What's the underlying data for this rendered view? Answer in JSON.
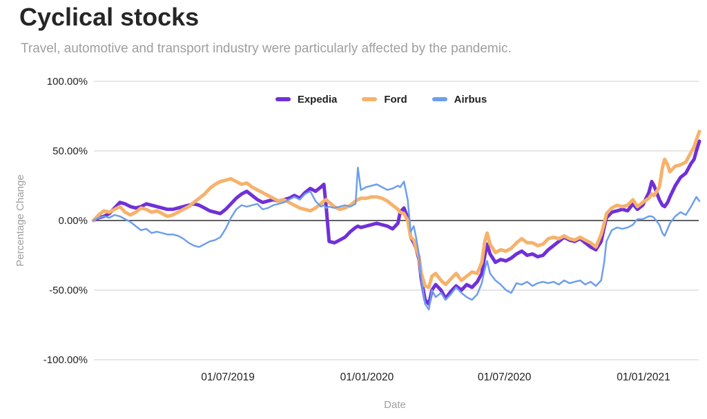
{
  "header": {
    "title": "Cyclical stocks",
    "subtitle": "Travel, automotive and transport industry were particularly affected by the pandemic."
  },
  "chart_data": {
    "type": "line",
    "title": "Cyclical stocks",
    "xlabel": "Date",
    "ylabel": "Percentage Change",
    "ylim": [
      -100,
      100
    ],
    "grid": "horizontal",
    "legend_position": "top-center",
    "grid_color": "#cccccc",
    "zero_line_color": "#4a4a4a",
    "tick_label_color": "#212121",
    "axis_title_color": "#9e9e9e",
    "yticks": [
      {
        "v": 100,
        "label": "100.00%"
      },
      {
        "v": 50,
        "label": "50.00%"
      },
      {
        "v": 0,
        "label": "0.00%"
      },
      {
        "v": -50,
        "label": "-50.00%"
      },
      {
        "v": -100,
        "label": "-100.00%"
      }
    ],
    "xticks": [
      {
        "date": "2019-07-01",
        "label": "01/07/2019"
      },
      {
        "date": "2020-01-01",
        "label": "01/01/2020"
      },
      {
        "date": "2020-07-01",
        "label": "01/07/2020"
      },
      {
        "date": "2021-01-01",
        "label": "01/01/2021"
      }
    ],
    "x": [
      "2019-01-04",
      "2019-01-11",
      "2019-01-18",
      "2019-01-25",
      "2019-02-01",
      "2019-02-08",
      "2019-02-15",
      "2019-02-22",
      "2019-03-01",
      "2019-03-08",
      "2019-03-15",
      "2019-03-22",
      "2019-03-29",
      "2019-04-05",
      "2019-04-12",
      "2019-04-19",
      "2019-04-26",
      "2019-05-03",
      "2019-05-10",
      "2019-05-17",
      "2019-05-24",
      "2019-05-31",
      "2019-06-07",
      "2019-06-14",
      "2019-06-21",
      "2019-06-28",
      "2019-07-05",
      "2019-07-12",
      "2019-07-19",
      "2019-07-26",
      "2019-08-02",
      "2019-08-09",
      "2019-08-16",
      "2019-08-23",
      "2019-08-30",
      "2019-09-06",
      "2019-09-13",
      "2019-09-20",
      "2019-09-27",
      "2019-10-04",
      "2019-10-11",
      "2019-10-18",
      "2019-10-25",
      "2019-11-01",
      "2019-11-05",
      "2019-11-08",
      "2019-11-12",
      "2019-11-19",
      "2019-11-26",
      "2019-12-03",
      "2019-12-10",
      "2019-12-17",
      "2019-12-20",
      "2019-12-24",
      "2019-12-31",
      "2020-01-07",
      "2020-01-14",
      "2020-01-21",
      "2020-01-28",
      "2020-02-04",
      "2020-02-11",
      "2020-02-14",
      "2020-02-19",
      "2020-02-24",
      "2020-02-28",
      "2020-03-03",
      "2020-03-06",
      "2020-03-10",
      "2020-03-13",
      "2020-03-18",
      "2020-03-23",
      "2020-03-27",
      "2020-04-01",
      "2020-04-08",
      "2020-04-14",
      "2020-04-21",
      "2020-04-28",
      "2020-05-05",
      "2020-05-12",
      "2020-05-19",
      "2020-05-26",
      "2020-06-01",
      "2020-06-05",
      "2020-06-08",
      "2020-06-12",
      "2020-06-19",
      "2020-06-26",
      "2020-07-03",
      "2020-07-10",
      "2020-07-17",
      "2020-07-24",
      "2020-07-31",
      "2020-08-07",
      "2020-08-14",
      "2020-08-21",
      "2020-08-28",
      "2020-09-04",
      "2020-09-11",
      "2020-09-18",
      "2020-09-25",
      "2020-10-02",
      "2020-10-09",
      "2020-10-16",
      "2020-10-23",
      "2020-10-30",
      "2020-11-06",
      "2020-11-10",
      "2020-11-13",
      "2020-11-20",
      "2020-11-27",
      "2020-12-04",
      "2020-12-11",
      "2020-12-18",
      "2020-12-24",
      "2020-12-31",
      "2021-01-08",
      "2021-01-12",
      "2021-01-15",
      "2021-01-22",
      "2021-01-26",
      "2021-01-29",
      "2021-02-02",
      "2021-02-05",
      "2021-02-12",
      "2021-02-19",
      "2021-02-26",
      "2021-03-05",
      "2021-03-09",
      "2021-03-12",
      "2021-03-16"
    ],
    "series": [
      {
        "name": "Expedia",
        "color": "#7030d8",
        "stroke_width": 5,
        "values": [
          0,
          2,
          3,
          5,
          9,
          13,
          12,
          10,
          9,
          10,
          12,
          11,
          10,
          9,
          8,
          8,
          9,
          10,
          11,
          12,
          11,
          9,
          7,
          6,
          5,
          8,
          12,
          16,
          19,
          21,
          18,
          15,
          13,
          14,
          15,
          14,
          15,
          16,
          18,
          16,
          20,
          23,
          21,
          24,
          26,
          10,
          -15,
          -16,
          -14,
          -12,
          -8,
          -5,
          -4,
          -5,
          -4,
          -3,
          -2,
          -3,
          -4,
          -6,
          -2,
          6,
          9,
          2,
          -12,
          -16,
          -20,
          -28,
          -42,
          -57,
          -60,
          -50,
          -46,
          -50,
          -56,
          -51,
          -47,
          -50,
          -46,
          -48,
          -44,
          -38,
          -25,
          -17,
          -24,
          -30,
          -28,
          -29,
          -27,
          -24,
          -22,
          -25,
          -24,
          -26,
          -25,
          -21,
          -18,
          -15,
          -12,
          -14,
          -15,
          -13,
          -16,
          -19,
          -21,
          -15,
          -5,
          2,
          6,
          7,
          8,
          7,
          12,
          8,
          11,
          20,
          28,
          25,
          15,
          11,
          10,
          13,
          17,
          25,
          31,
          34,
          41,
          44,
          50,
          57
        ]
      },
      {
        "name": "Ford",
        "color": "#f6b26b",
        "stroke_width": 5,
        "values": [
          0,
          4,
          7,
          6,
          8,
          10,
          6,
          4,
          6,
          9,
          8,
          6,
          7,
          5,
          3,
          4,
          6,
          8,
          10,
          13,
          16,
          19,
          23,
          26,
          28,
          29,
          30,
          28,
          26,
          27,
          24,
          22,
          20,
          18,
          16,
          14,
          15,
          13,
          11,
          9,
          8,
          7,
          9,
          12,
          14,
          15,
          13,
          10,
          8,
          9,
          11,
          14,
          15,
          16,
          16,
          17,
          17,
          16,
          14,
          11,
          8,
          6,
          5,
          0,
          -12,
          -14,
          -20,
          -26,
          -38,
          -47,
          -48,
          -40,
          -38,
          -43,
          -46,
          -42,
          -38,
          -43,
          -40,
          -37,
          -38,
          -30,
          -15,
          -9,
          -17,
          -23,
          -21,
          -22,
          -20,
          -16,
          -13,
          -16,
          -16,
          -18,
          -17,
          -13,
          -12,
          -13,
          -11,
          -13,
          -14,
          -12,
          -14,
          -16,
          -19,
          -10,
          -2,
          5,
          9,
          11,
          10,
          11,
          15,
          10,
          13,
          16,
          19,
          18,
          24,
          38,
          44,
          40,
          35,
          39,
          40,
          42,
          49,
          53,
          58,
          64
        ]
      },
      {
        "name": "Airbus",
        "color": "#6d9eeb",
        "stroke_width": 2.5,
        "values": [
          0,
          2,
          3,
          2,
          4,
          3,
          1,
          -1,
          -4,
          -7,
          -6,
          -9,
          -8,
          -9,
          -10,
          -10,
          -11,
          -13,
          -16,
          -18,
          -19,
          -17,
          -15,
          -14,
          -12,
          -6,
          2,
          8,
          11,
          10,
          11,
          12,
          8,
          9,
          11,
          12,
          13,
          15,
          17,
          15,
          19,
          21,
          14,
          10,
          11,
          9,
          10,
          9,
          10,
          11,
          10,
          12,
          38,
          22,
          24,
          25,
          26,
          24,
          22,
          23,
          25,
          24,
          28,
          15,
          -8,
          -4,
          -12,
          -25,
          -42,
          -60,
          -64,
          -50,
          -55,
          -52,
          -57,
          -53,
          -48,
          -52,
          -55,
          -57,
          -53,
          -45,
          -35,
          -29,
          -38,
          -43,
          -46,
          -50,
          -52,
          -45,
          -46,
          -44,
          -47,
          -45,
          -44,
          -45,
          -44,
          -46,
          -43,
          -45,
          -44,
          -43,
          -46,
          -44,
          -47,
          -43,
          -30,
          -15,
          -7,
          -5,
          -6,
          -5,
          -3,
          1,
          1,
          3,
          3,
          2,
          -3,
          -9,
          -11,
          -6,
          -2,
          3,
          6,
          4,
          10,
          14,
          17,
          14
        ]
      }
    ]
  }
}
